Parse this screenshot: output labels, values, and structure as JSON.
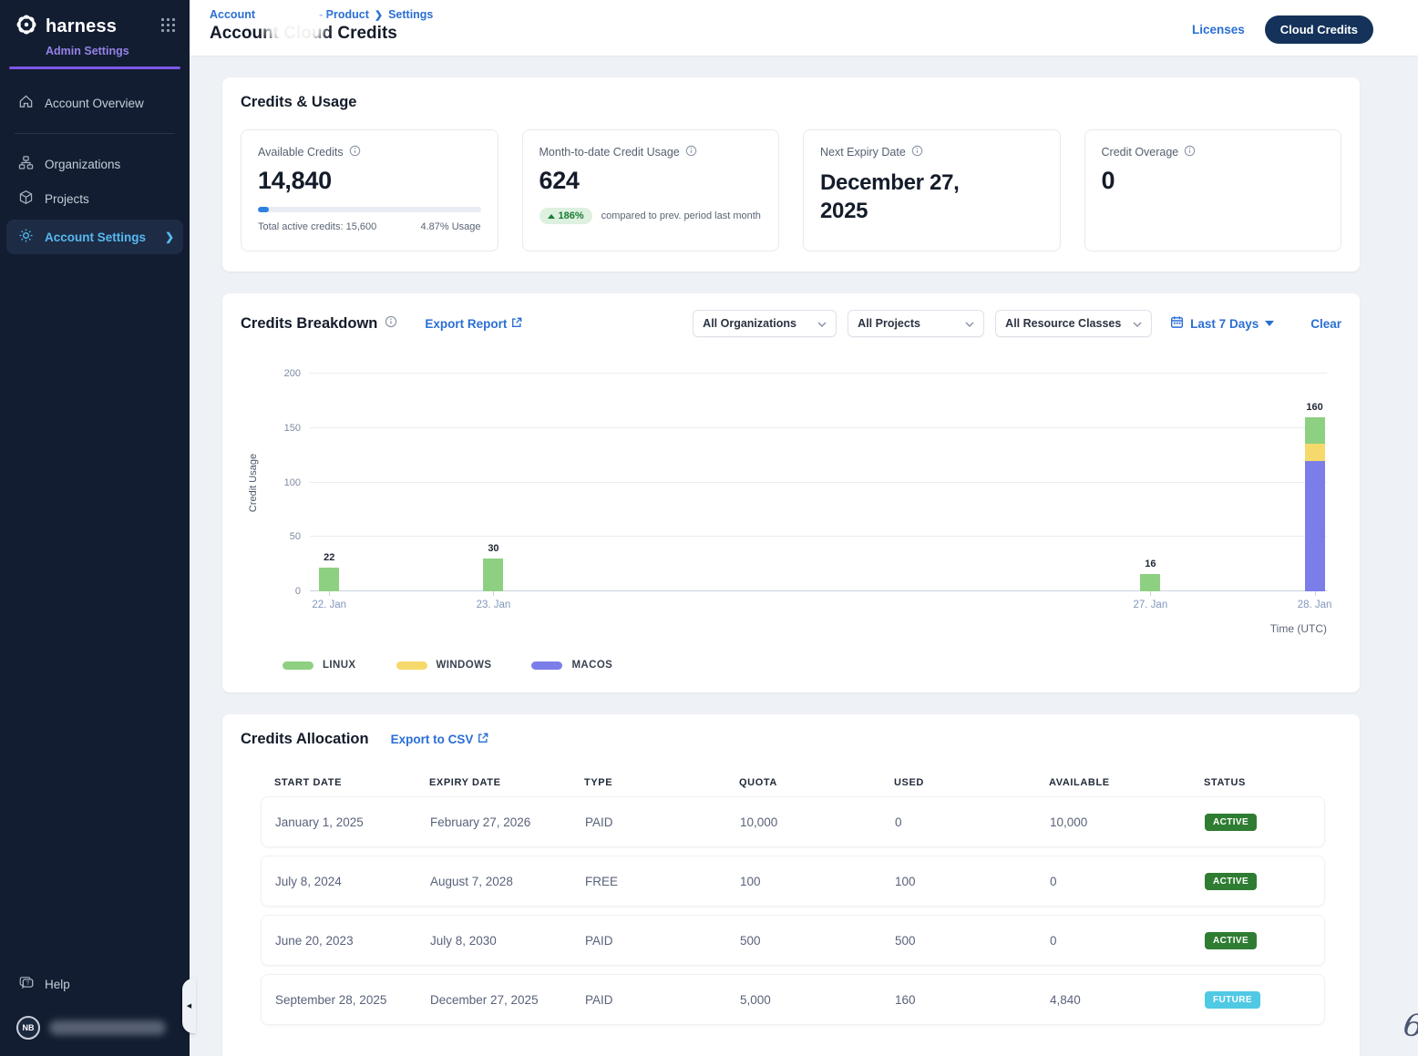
{
  "sidebar": {
    "brand": "harness",
    "subtitle": "Admin Settings",
    "items": [
      {
        "label": "Account Overview"
      },
      {
        "label": "Organizations"
      },
      {
        "label": "Projects"
      },
      {
        "label": "Account Settings"
      }
    ],
    "help_label": "Help",
    "avatar_initials": "NB"
  },
  "header": {
    "breadcrumb": {
      "part1": "Account",
      "part2": "- Product",
      "part3": "Settings"
    },
    "title": "Account Cloud Credits",
    "licenses_label": "Licenses",
    "cloud_credits_label": "Cloud Credits"
  },
  "usage_section": {
    "title": "Credits & Usage",
    "cards": {
      "available": {
        "label": "Available Credits",
        "value": "14,840",
        "total": "Total active credits: 15,600",
        "usage": "4.87% Usage",
        "progress_pct": 4.87,
        "progress_color": "#2f80e0"
      },
      "mtd": {
        "label": "Month-to-date Credit Usage",
        "value": "624",
        "delta": "186%",
        "delta_note": "compared to prev. period last month"
      },
      "expiry": {
        "label": "Next Expiry Date",
        "value": "December 27, 2025"
      },
      "overage": {
        "label": "Credit Overage",
        "value": "0"
      }
    }
  },
  "breakdown_section": {
    "title": "Credits Breakdown",
    "export_label": "Export Report",
    "filters": {
      "organizations": "All Organizations",
      "projects": "All Projects",
      "resource_classes": "All Resource Classes",
      "date_range": "Last 7 Days",
      "clear_label": "Clear"
    }
  },
  "chart_data": {
    "type": "bar",
    "stacked": true,
    "x": [
      "22. Jan",
      "23. Jan",
      "27. Jan",
      "28. Jan"
    ],
    "day_offsets": [
      0,
      1,
      5,
      6
    ],
    "days_in_window": 7,
    "series": [
      {
        "name": "LINUX",
        "values": [
          22,
          30,
          16,
          24
        ],
        "color": "#8ed081"
      },
      {
        "name": "WINDOWS",
        "values": [
          0,
          0,
          0,
          16
        ],
        "color": "#f6d96b"
      },
      {
        "name": "MACOS",
        "values": [
          0,
          0,
          0,
          120
        ],
        "color": "#7b7ee9"
      }
    ],
    "totals": [
      22,
      30,
      16,
      160
    ],
    "stack_order_bottom_to_top": [
      "MACOS",
      "WINDOWS",
      "LINUX"
    ],
    "title": "Credits Breakdown",
    "xlabel": "Time (UTC)",
    "ylabel": "Credit Usage",
    "ylim": [
      0,
      200
    ],
    "yticks": [
      0,
      50,
      100,
      150,
      200
    ],
    "grid": true,
    "legend_position": "bottom-left"
  },
  "allocation_section": {
    "title": "Credits Allocation",
    "export_label": "Export to CSV",
    "table": {
      "headers": [
        "START DATE",
        "EXPIRY DATE",
        "TYPE",
        "QUOTA",
        "USED",
        "AVAILABLE",
        "STATUS"
      ],
      "rows": [
        {
          "start": "January 1, 2025",
          "expiry": "February 27, 2026",
          "type": "PAID",
          "quota": "10,000",
          "used": "0",
          "available": "10,000",
          "status": "ACTIVE"
        },
        {
          "start": "July 8, 2024",
          "expiry": "August 7, 2028",
          "type": "FREE",
          "quota": "100",
          "used": "100",
          "available": "0",
          "status": "ACTIVE"
        },
        {
          "start": "June 20, 2023",
          "expiry": "July 8, 2030",
          "type": "PAID",
          "quota": "500",
          "used": "500",
          "available": "0",
          "status": "ACTIVE"
        },
        {
          "start": "September 28, 2025",
          "expiry": "December 27, 2025",
          "type": "PAID",
          "quota": "5,000",
          "used": "160",
          "available": "4,840",
          "status": "FUTURE"
        }
      ],
      "status_colors": {
        "ACTIVE": "#2e7d32",
        "FUTURE": "#4fc9e4"
      }
    }
  },
  "annotation": "6"
}
